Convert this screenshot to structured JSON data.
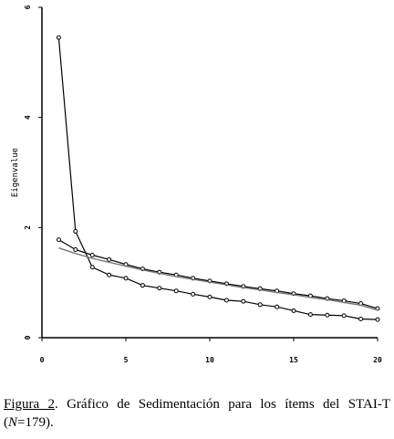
{
  "chart_data": {
    "type": "line",
    "xlabel": "",
    "ylabel": "Eigenvalue",
    "xlim": [
      0,
      20
    ],
    "ylim": [
      0,
      6
    ],
    "x_ticks": [
      0,
      5,
      10,
      15,
      20
    ],
    "y_ticks": [
      0,
      2,
      4,
      6
    ],
    "grid": false,
    "legend": "none",
    "series": [
      {
        "x": [
          1,
          2,
          3,
          4,
          5,
          6,
          7,
          8,
          9,
          10,
          11,
          12,
          13,
          14,
          15,
          16,
          17,
          18,
          19,
          20
        ],
        "values": [
          5.45,
          1.93,
          1.28,
          1.14,
          1.08,
          0.95,
          0.9,
          0.85,
          0.79,
          0.74,
          0.68,
          0.66,
          0.6,
          0.56,
          0.49,
          0.42,
          0.41,
          0.4,
          0.34,
          0.33
        ],
        "markers": true,
        "color": "#000000"
      },
      {
        "x": [
          1,
          2,
          3,
          4,
          5,
          6,
          7,
          8,
          9,
          10,
          11,
          12,
          13,
          14,
          15,
          16,
          17,
          18,
          19,
          20
        ],
        "values": [
          1.78,
          1.6,
          1.5,
          1.42,
          1.33,
          1.25,
          1.19,
          1.14,
          1.08,
          1.03,
          0.98,
          0.93,
          0.89,
          0.85,
          0.8,
          0.76,
          0.71,
          0.67,
          0.62,
          0.53
        ],
        "markers": true,
        "color": "#000000"
      },
      {
        "x": [
          1,
          2,
          3,
          4,
          5,
          6,
          7,
          8,
          9,
          10,
          11,
          12,
          13,
          14,
          15,
          16,
          17,
          18,
          19,
          20
        ],
        "values": [
          1.63,
          1.53,
          1.44,
          1.37,
          1.3,
          1.23,
          1.17,
          1.11,
          1.06,
          1.01,
          0.96,
          0.91,
          0.87,
          0.82,
          0.78,
          0.73,
          0.69,
          0.64,
          0.59,
          0.5
        ],
        "markers": false,
        "color": "#777777"
      }
    ]
  },
  "caption": {
    "label": "Figura 2",
    "text_before": ". Gráfico de Sedimentación para los ítems del STAI-T (",
    "n_symbol": "N",
    "text_after": "=179)."
  }
}
